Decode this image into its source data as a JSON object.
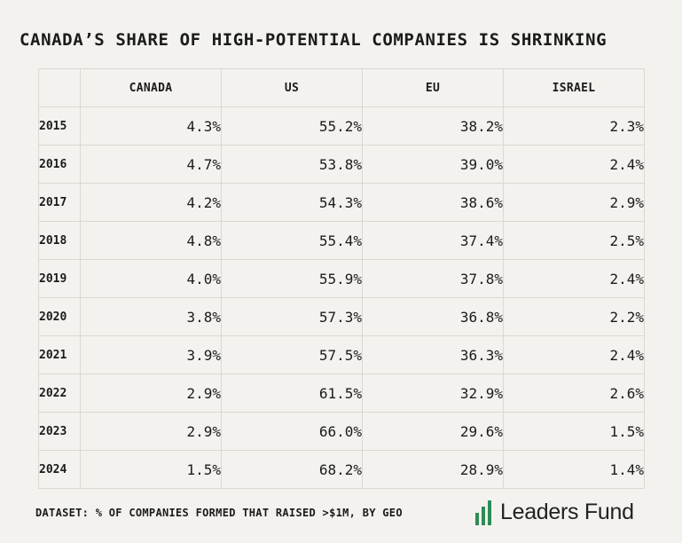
{
  "title": "CANADA’S SHARE OF HIGH-POTENTIAL COMPANIES IS SHRINKING",
  "chart_data": {
    "type": "table",
    "columns": [
      "CANADA",
      "US",
      "EU",
      "ISRAEL"
    ],
    "rows": [
      {
        "year": "2015",
        "cells": [
          "4.3%",
          "55.2%",
          "38.2%",
          "2.3%"
        ]
      },
      {
        "year": "2016",
        "cells": [
          "4.7%",
          "53.8%",
          "39.0%",
          "2.4%"
        ]
      },
      {
        "year": "2017",
        "cells": [
          "4.2%",
          "54.3%",
          "38.6%",
          "2.9%"
        ]
      },
      {
        "year": "2018",
        "cells": [
          "4.8%",
          "55.4%",
          "37.4%",
          "2.5%"
        ]
      },
      {
        "year": "2019",
        "cells": [
          "4.0%",
          "55.9%",
          "37.8%",
          "2.4%"
        ]
      },
      {
        "year": "2020",
        "cells": [
          "3.8%",
          "57.3%",
          "36.8%",
          "2.2%"
        ]
      },
      {
        "year": "2021",
        "cells": [
          "3.9%",
          "57.5%",
          "36.3%",
          "2.4%"
        ]
      },
      {
        "year": "2022",
        "cells": [
          "2.9%",
          "61.5%",
          "32.9%",
          "2.6%"
        ]
      },
      {
        "year": "2023",
        "cells": [
          "2.9%",
          "66.0%",
          "29.6%",
          "1.5%"
        ]
      },
      {
        "year": "2024",
        "cells": [
          "1.5%",
          "68.2%",
          "28.9%",
          "1.4%"
        ]
      }
    ]
  },
  "footer": "DATASET: % OF COMPANIES FORMED THAT RAISED >$1M, BY GEO",
  "brand": {
    "name": "Leaders Fund",
    "icon": "bar-chart-logo-icon",
    "color": "#2e8b57"
  }
}
